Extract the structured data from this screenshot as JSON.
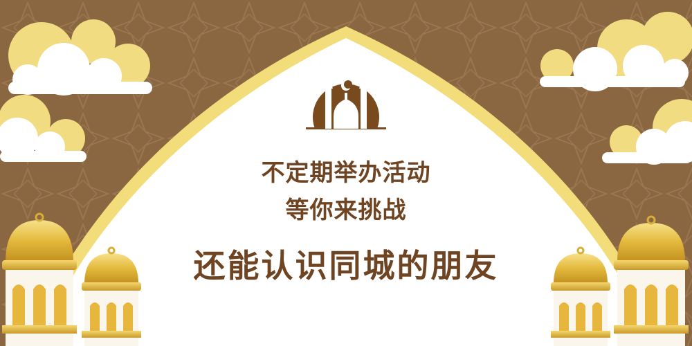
{
  "banner": {
    "line1": "不定期举办活动",
    "line2": "等你来挑战",
    "line3": "还能认识同城的朋友"
  },
  "icons": {
    "emblem": "mosque-silhouette-icon",
    "decor": [
      "cloud",
      "golden-lantern"
    ]
  },
  "colors": {
    "background": "#8a6641",
    "arch_fill": "#ffffff",
    "arch_border": "#f3dc7a",
    "text": "#6e4422",
    "gold": "#e3b93c",
    "cloud_accent": "#f2dc82"
  }
}
